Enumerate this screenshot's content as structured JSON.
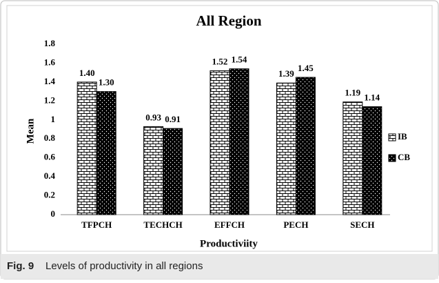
{
  "chart_data": {
    "type": "bar",
    "title": "All Region",
    "x_label": "Productiviity",
    "y_label": "Mean",
    "categories": [
      "TFPCH",
      "TECHCH",
      "EFFCH",
      "PECH",
      "SECH"
    ],
    "series": [
      {
        "name": "IB",
        "color": "#000000",
        "pattern": "brick",
        "values": [
          1.4,
          0.93,
          1.52,
          1.39,
          1.19
        ],
        "value_labels": [
          "1.40",
          "0.93",
          "1.52",
          "1.39",
          "1.19"
        ]
      },
      {
        "name": "CB",
        "color": "#000000",
        "pattern": "dots",
        "values": [
          1.3,
          0.91,
          1.54,
          1.45,
          1.14
        ],
        "value_labels": [
          "1.30",
          "0.91",
          "1.54",
          "1.45",
          "1.14"
        ]
      }
    ],
    "ylim": [
      0,
      1.8
    ],
    "yticks": [
      0,
      0.2,
      0.4,
      0.6,
      0.8,
      1,
      1.2,
      1.4,
      1.6,
      1.8
    ],
    "grid": false,
    "legend": "right"
  },
  "caption": {
    "label": "Fig. 9",
    "text": "Levels of productivity in all regions"
  }
}
